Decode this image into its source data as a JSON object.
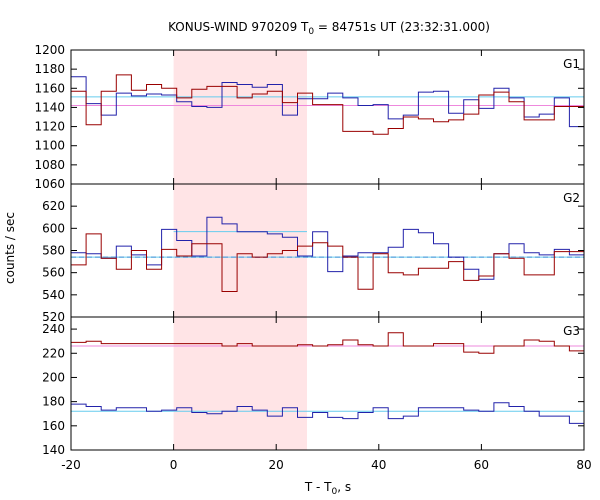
{
  "chart_data": {
    "type": "line",
    "title_main": "KONUS-WIND 970209 T",
    "title_sub": "0",
    "title_rest": " = 84751s UT (23:32:31.000)",
    "xlabel_main": "T - T",
    "xlabel_sub": "0",
    "xlabel_rest": ", s",
    "ylabel": "counts / sec",
    "xlim": [
      -20,
      80
    ],
    "xticks": [
      -20,
      0,
      20,
      40,
      60,
      80
    ],
    "shaded_interval": [
      0,
      26
    ],
    "colors": {
      "red": "#990000",
      "blue": "#2222aa",
      "blue_bg": "#66ccee",
      "pink_bg": "#ee88dd",
      "blue_dash": "#2222aa",
      "shade": "#ffe4e6"
    },
    "panels": [
      {
        "label": "G1",
        "ylim": [
          1060,
          1200
        ],
        "yticks": [
          1060,
          1080,
          1100,
          1120,
          1140,
          1160,
          1180,
          1200
        ],
        "background": [
          {
            "color": "blue_bg",
            "y": 1151,
            "dashed": false,
            "x0": -20,
            "x1": 80
          },
          {
            "color": "pink_bg",
            "y": 1142,
            "dashed": false,
            "x0": -20,
            "x1": 80
          }
        ],
        "burst_level": null,
        "red": {
          "x0": -20,
          "step": 2.944,
          "values": [
            1157,
            1122,
            1157,
            1174,
            1158,
            1164,
            1160,
            1150,
            1159,
            1162,
            1162,
            1150,
            1154,
            1157,
            1145,
            1155,
            1143,
            1143,
            1115,
            1115,
            1112,
            1118,
            1130,
            1128,
            1125,
            1127,
            1133,
            1153,
            1156,
            1146,
            1127,
            1127,
            1141,
            1141
          ]
        },
        "blue": {
          "x0": -20,
          "step": 2.944,
          "values": [
            1172,
            1144,
            1132,
            1155,
            1152,
            1154,
            1153,
            1146,
            1141,
            1140,
            1166,
            1164,
            1161,
            1164,
            1132,
            1149,
            1149,
            1155,
            1150,
            1142,
            1143,
            1128,
            1132,
            1156,
            1157,
            1134,
            1148,
            1139,
            1160,
            1150,
            1130,
            1133,
            1150,
            1120
          ]
        }
      },
      {
        "label": "G2",
        "ylim": [
          520,
          640
        ],
        "yticks": [
          520,
          540,
          560,
          580,
          600,
          620
        ],
        "background": [
          {
            "color": "blue_dash",
            "y": 574,
            "dashed": true,
            "x0": -20,
            "x1": 80
          },
          {
            "color": "blue_bg",
            "y": 574,
            "dashed": false,
            "x0": -20,
            "x1": 80
          }
        ],
        "burst_level": {
          "y": 597,
          "x0": 0,
          "x1": 26
        },
        "red": {
          "x0": -20,
          "step": 2.944,
          "values": [
            567,
            595,
            573,
            563,
            580,
            563,
            581,
            575,
            586,
            586,
            543,
            577,
            574,
            577,
            580,
            584,
            587,
            584,
            574,
            545,
            577,
            560,
            558,
            564,
            564,
            570,
            553,
            557,
            577,
            573,
            558,
            558,
            579,
            579
          ]
        },
        "blue": {
          "x0": -20,
          "step": 2.944,
          "values": [
            578,
            577,
            573,
            584,
            576,
            567,
            599,
            589,
            575,
            610,
            604,
            597,
            597,
            595,
            592,
            575,
            597,
            561,
            575,
            578,
            578,
            583,
            599,
            596,
            586,
            574,
            563,
            554,
            577,
            586,
            578,
            576,
            581,
            576
          ]
        }
      },
      {
        "label": "G3",
        "ylim": [
          140,
          250
        ],
        "yticks": [
          140,
          160,
          180,
          200,
          220,
          240
        ],
        "background": [
          {
            "color": "pink_bg",
            "y": 226,
            "dashed": false,
            "x0": -20,
            "x1": 80
          },
          {
            "color": "blue_bg",
            "y": 172,
            "dashed": false,
            "x0": -20,
            "x1": 80
          }
        ],
        "burst_level": null,
        "red": {
          "x0": -20,
          "step": 2.944,
          "values": [
            229,
            230,
            228,
            228,
            228,
            228,
            228,
            228,
            228,
            228,
            226,
            228,
            226,
            226,
            226,
            227,
            226,
            227,
            231,
            227,
            226,
            237,
            226,
            226,
            228,
            228,
            221,
            220,
            226,
            226,
            231,
            230,
            226,
            222
          ]
        },
        "blue": {
          "x0": -20,
          "step": 2.944,
          "values": [
            178,
            176,
            173,
            175,
            175,
            172,
            173,
            175,
            171,
            170,
            172,
            176,
            173,
            168,
            175,
            167,
            171,
            167,
            166,
            171,
            175,
            166,
            168,
            175,
            175,
            175,
            173,
            172,
            179,
            176,
            172,
            168,
            168,
            162
          ]
        }
      }
    ]
  }
}
